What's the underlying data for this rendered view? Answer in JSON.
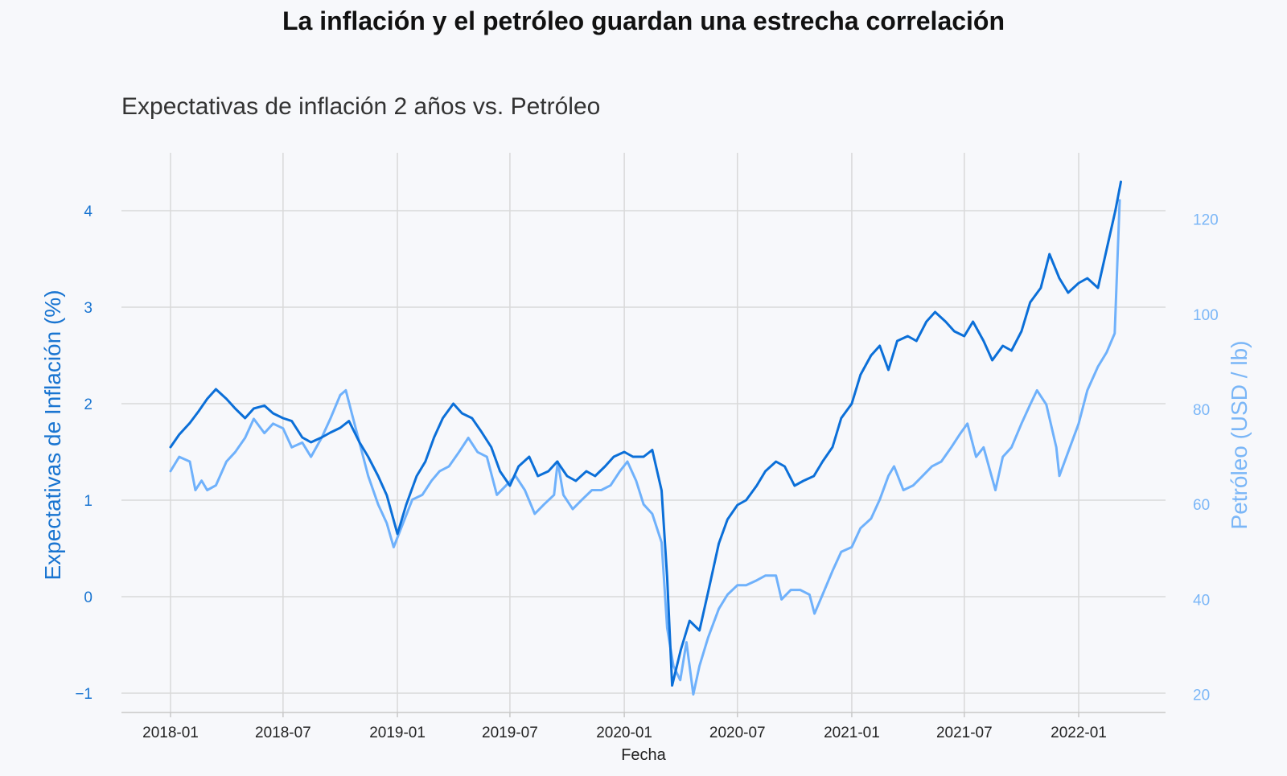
{
  "title": "La inflación y el petróleo guardan una estrecha correlación",
  "chart_data": {
    "type": "line",
    "title": "Expectativas de inflación 2 años vs. Petróleo",
    "xlabel": "Fecha",
    "ylabel_left": "Expectativas de Inflación (%)",
    "ylabel_right": "Petróleo (USD / lb)",
    "x_ticks": [
      "2018-01",
      "2018-07",
      "2019-01",
      "2019-07",
      "2020-01",
      "2020-07",
      "2021-01",
      "2021-07",
      "2022-01"
    ],
    "y_left_ticks": [
      -1,
      0,
      1,
      2,
      3,
      4
    ],
    "y_right_ticks": [
      20,
      40,
      60,
      80,
      100,
      120
    ],
    "y_left_lim": [
      -1.2,
      4.6
    ],
    "y_right_lim": [
      16.2,
      134.0
    ],
    "grid": true,
    "colors": {
      "inflation": "#0b6fd8",
      "oil": "#6fb1fb",
      "grid": "#d9d9d9",
      "axis_left": "#1a75d1",
      "axis_right": "#7ab6f7"
    },
    "series": [
      {
        "axis": "left",
        "points": [
          [
            "2018-01-01",
            1.55
          ],
          [
            "2018-01-15",
            1.68
          ],
          [
            "2018-02-01",
            1.8
          ],
          [
            "2018-02-15",
            1.92
          ],
          [
            "2018-03-01",
            2.05
          ],
          [
            "2018-03-15",
            2.15
          ],
          [
            "2018-04-01",
            2.05
          ],
          [
            "2018-04-15",
            1.95
          ],
          [
            "2018-05-01",
            1.85
          ],
          [
            "2018-05-15",
            1.95
          ],
          [
            "2018-06-01",
            1.98
          ],
          [
            "2018-06-15",
            1.9
          ],
          [
            "2018-07-01",
            1.85
          ],
          [
            "2018-07-15",
            1.82
          ],
          [
            "2018-08-01",
            1.65
          ],
          [
            "2018-08-15",
            1.6
          ],
          [
            "2018-09-01",
            1.65
          ],
          [
            "2018-09-15",
            1.7
          ],
          [
            "2018-10-01",
            1.75
          ],
          [
            "2018-10-15",
            1.82
          ],
          [
            "2018-11-01",
            1.6
          ],
          [
            "2018-11-15",
            1.45
          ],
          [
            "2018-12-01",
            1.25
          ],
          [
            "2018-12-15",
            1.05
          ],
          [
            "2019-01-01",
            0.65
          ],
          [
            "2019-01-15",
            0.95
          ],
          [
            "2019-02-01",
            1.25
          ],
          [
            "2019-02-15",
            1.4
          ],
          [
            "2019-03-01",
            1.65
          ],
          [
            "2019-03-15",
            1.85
          ],
          [
            "2019-04-01",
            2.0
          ],
          [
            "2019-04-15",
            1.9
          ],
          [
            "2019-05-01",
            1.85
          ],
          [
            "2019-05-15",
            1.72
          ],
          [
            "2019-06-01",
            1.55
          ],
          [
            "2019-06-15",
            1.3
          ],
          [
            "2019-07-01",
            1.15
          ],
          [
            "2019-07-15",
            1.35
          ],
          [
            "2019-08-01",
            1.45
          ],
          [
            "2019-08-15",
            1.25
          ],
          [
            "2019-09-01",
            1.3
          ],
          [
            "2019-09-15",
            1.4
          ],
          [
            "2019-10-01",
            1.25
          ],
          [
            "2019-10-15",
            1.2
          ],
          [
            "2019-11-01",
            1.3
          ],
          [
            "2019-11-15",
            1.25
          ],
          [
            "2019-12-01",
            1.35
          ],
          [
            "2019-12-15",
            1.45
          ],
          [
            "2020-01-01",
            1.5
          ],
          [
            "2020-01-15",
            1.45
          ],
          [
            "2020-02-01",
            1.45
          ],
          [
            "2020-02-15",
            1.52
          ],
          [
            "2020-03-01",
            1.1
          ],
          [
            "2020-03-10",
            0.2
          ],
          [
            "2020-03-18",
            -0.92
          ],
          [
            "2020-04-01",
            -0.55
          ],
          [
            "2020-04-15",
            -0.25
          ],
          [
            "2020-05-01",
            -0.35
          ],
          [
            "2020-05-15",
            0.05
          ],
          [
            "2020-06-01",
            0.55
          ],
          [
            "2020-06-15",
            0.8
          ],
          [
            "2020-07-01",
            0.95
          ],
          [
            "2020-07-15",
            1.0
          ],
          [
            "2020-08-01",
            1.15
          ],
          [
            "2020-08-15",
            1.3
          ],
          [
            "2020-09-01",
            1.4
          ],
          [
            "2020-09-15",
            1.35
          ],
          [
            "2020-10-01",
            1.15
          ],
          [
            "2020-10-15",
            1.2
          ],
          [
            "2020-11-01",
            1.25
          ],
          [
            "2020-11-15",
            1.4
          ],
          [
            "2020-12-01",
            1.55
          ],
          [
            "2020-12-15",
            1.85
          ],
          [
            "2021-01-01",
            2.0
          ],
          [
            "2021-01-15",
            2.3
          ],
          [
            "2021-02-01",
            2.5
          ],
          [
            "2021-02-15",
            2.6
          ],
          [
            "2021-03-01",
            2.35
          ],
          [
            "2021-03-15",
            2.65
          ],
          [
            "2021-04-01",
            2.7
          ],
          [
            "2021-04-15",
            2.65
          ],
          [
            "2021-05-01",
            2.85
          ],
          [
            "2021-05-15",
            2.95
          ],
          [
            "2021-06-01",
            2.85
          ],
          [
            "2021-06-15",
            2.75
          ],
          [
            "2021-07-01",
            2.7
          ],
          [
            "2021-07-15",
            2.85
          ],
          [
            "2021-08-01",
            2.65
          ],
          [
            "2021-08-15",
            2.45
          ],
          [
            "2021-09-01",
            2.6
          ],
          [
            "2021-09-15",
            2.55
          ],
          [
            "2021-10-01",
            2.75
          ],
          [
            "2021-10-15",
            3.05
          ],
          [
            "2021-11-01",
            3.2
          ],
          [
            "2021-11-15",
            3.55
          ],
          [
            "2021-12-01",
            3.3
          ],
          [
            "2021-12-15",
            3.15
          ],
          [
            "2022-01-01",
            3.25
          ],
          [
            "2022-01-15",
            3.3
          ],
          [
            "2022-02-01",
            3.2
          ],
          [
            "2022-02-15",
            3.6
          ],
          [
            "2022-03-01",
            4.0
          ],
          [
            "2022-03-10",
            4.3
          ]
        ]
      },
      {
        "axis": "right",
        "points": [
          [
            "2018-01-01",
            67
          ],
          [
            "2018-01-15",
            70
          ],
          [
            "2018-02-01",
            69
          ],
          [
            "2018-02-10",
            63
          ],
          [
            "2018-02-20",
            65
          ],
          [
            "2018-03-01",
            63
          ],
          [
            "2018-03-15",
            64
          ],
          [
            "2018-04-01",
            69
          ],
          [
            "2018-04-15",
            71
          ],
          [
            "2018-05-01",
            74
          ],
          [
            "2018-05-15",
            78
          ],
          [
            "2018-06-01",
            75
          ],
          [
            "2018-06-15",
            77
          ],
          [
            "2018-07-01",
            76
          ],
          [
            "2018-07-15",
            72
          ],
          [
            "2018-08-01",
            73
          ],
          [
            "2018-08-15",
            70
          ],
          [
            "2018-09-01",
            74
          ],
          [
            "2018-09-15",
            78
          ],
          [
            "2018-10-01",
            83
          ],
          [
            "2018-10-10",
            84
          ],
          [
            "2018-10-20",
            79
          ],
          [
            "2018-11-01",
            73
          ],
          [
            "2018-11-15",
            66
          ],
          [
            "2018-12-01",
            60
          ],
          [
            "2018-12-15",
            56
          ],
          [
            "2018-12-26",
            51
          ],
          [
            "2019-01-10",
            56
          ],
          [
            "2019-01-25",
            61
          ],
          [
            "2019-02-10",
            62
          ],
          [
            "2019-02-25",
            65
          ],
          [
            "2019-03-10",
            67
          ],
          [
            "2019-03-25",
            68
          ],
          [
            "2019-04-10",
            71
          ],
          [
            "2019-04-25",
            74
          ],
          [
            "2019-05-10",
            71
          ],
          [
            "2019-05-25",
            70
          ],
          [
            "2019-06-10",
            62
          ],
          [
            "2019-06-25",
            64
          ],
          [
            "2019-07-10",
            66
          ],
          [
            "2019-07-25",
            63
          ],
          [
            "2019-08-10",
            58
          ],
          [
            "2019-08-25",
            60
          ],
          [
            "2019-09-10",
            62
          ],
          [
            "2019-09-16",
            69
          ],
          [
            "2019-09-25",
            62
          ],
          [
            "2019-10-10",
            59
          ],
          [
            "2019-10-25",
            61
          ],
          [
            "2019-11-10",
            63
          ],
          [
            "2019-11-25",
            63
          ],
          [
            "2019-12-10",
            64
          ],
          [
            "2019-12-25",
            67
          ],
          [
            "2020-01-06",
            69
          ],
          [
            "2020-01-20",
            65
          ],
          [
            "2020-02-01",
            60
          ],
          [
            "2020-02-15",
            58
          ],
          [
            "2020-03-01",
            52
          ],
          [
            "2020-03-10",
            34
          ],
          [
            "2020-03-20",
            26
          ],
          [
            "2020-03-31",
            23
          ],
          [
            "2020-04-10",
            31
          ],
          [
            "2020-04-21",
            20
          ],
          [
            "2020-05-01",
            26
          ],
          [
            "2020-05-15",
            32
          ],
          [
            "2020-06-01",
            38
          ],
          [
            "2020-06-15",
            41
          ],
          [
            "2020-07-01",
            43
          ],
          [
            "2020-07-15",
            43
          ],
          [
            "2020-08-01",
            44
          ],
          [
            "2020-08-15",
            45
          ],
          [
            "2020-09-01",
            45
          ],
          [
            "2020-09-10",
            40
          ],
          [
            "2020-09-25",
            42
          ],
          [
            "2020-10-10",
            42
          ],
          [
            "2020-10-25",
            41
          ],
          [
            "2020-11-02",
            37
          ],
          [
            "2020-11-15",
            41
          ],
          [
            "2020-12-01",
            46
          ],
          [
            "2020-12-15",
            50
          ],
          [
            "2021-01-01",
            51
          ],
          [
            "2021-01-15",
            55
          ],
          [
            "2021-02-01",
            57
          ],
          [
            "2021-02-15",
            61
          ],
          [
            "2021-03-01",
            66
          ],
          [
            "2021-03-10",
            68
          ],
          [
            "2021-03-25",
            63
          ],
          [
            "2021-04-10",
            64
          ],
          [
            "2021-04-25",
            66
          ],
          [
            "2021-05-10",
            68
          ],
          [
            "2021-05-25",
            69
          ],
          [
            "2021-06-10",
            72
          ],
          [
            "2021-06-25",
            75
          ],
          [
            "2021-07-06",
            77
          ],
          [
            "2021-07-20",
            70
          ],
          [
            "2021-08-01",
            72
          ],
          [
            "2021-08-20",
            63
          ],
          [
            "2021-09-01",
            70
          ],
          [
            "2021-09-15",
            72
          ],
          [
            "2021-10-01",
            77
          ],
          [
            "2021-10-15",
            81
          ],
          [
            "2021-10-26",
            84
          ],
          [
            "2021-11-10",
            81
          ],
          [
            "2021-11-26",
            72
          ],
          [
            "2021-12-01",
            66
          ],
          [
            "2021-12-15",
            71
          ],
          [
            "2022-01-01",
            77
          ],
          [
            "2022-01-15",
            84
          ],
          [
            "2022-02-01",
            89
          ],
          [
            "2022-02-15",
            92
          ],
          [
            "2022-02-28",
            96
          ],
          [
            "2022-03-08",
            124
          ]
        ]
      }
    ]
  }
}
